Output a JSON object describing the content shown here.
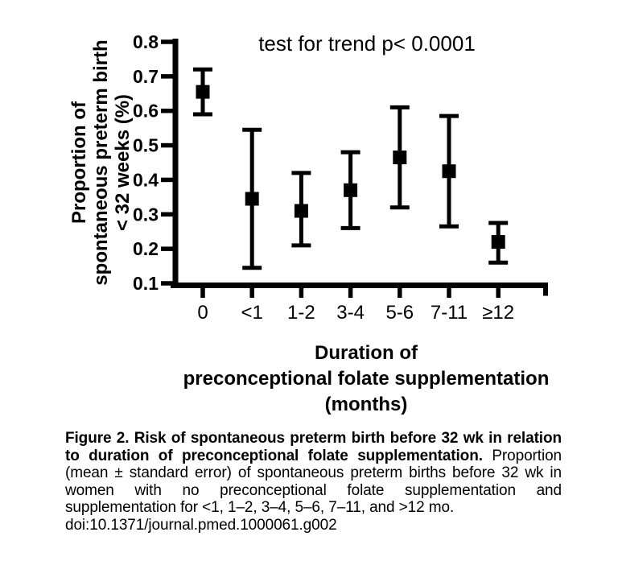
{
  "chart_data": {
    "type": "scatter",
    "annotation": "test for trend p< 0.0001",
    "categories": [
      "0",
      "<1",
      "1-2",
      "3-4",
      "5-6",
      "7-11",
      "≥12"
    ],
    "series": [
      {
        "name": "proportion of spontaneous preterm birth < 32 weeks (mean ± standard error)",
        "means": [
          0.655,
          0.345,
          0.31,
          0.37,
          0.465,
          0.425,
          0.22
        ],
        "err_low": [
          0.59,
          0.145,
          0.21,
          0.26,
          0.32,
          0.265,
          0.16
        ],
        "err_high": [
          0.72,
          0.545,
          0.42,
          0.48,
          0.61,
          0.585,
          0.275
        ]
      }
    ],
    "ylabel": "Proportion of spontaneous preterm birth < 32 weeks (%)",
    "ylabel_lines": [
      "Proportion of",
      "spontaneous preterm birth",
      "< 32 weeks (%)"
    ],
    "xlabel": "Duration of preconceptional folate supplementation (months)",
    "xlabel_lines": [
      "Duration of",
      "preconceptional folate supplementation",
      "(months)"
    ],
    "ylim": [
      0.1,
      0.8
    ],
    "yticks": [
      0.8,
      0.7,
      0.6,
      0.5,
      0.4,
      0.3,
      0.2,
      0.1
    ],
    "grid": false,
    "legend": "none",
    "marker": "filled-square",
    "color": "#000000"
  },
  "caption": {
    "bold_lead": "Figure 2. Risk of spontaneous preterm birth before 32 wk in relation to duration of preconceptional folate supplementation.",
    "body": "Proportion (mean ± standard error) of spontaneous preterm births before 32 wk in women with no preconceptional folate supplementation and supplementation for <1, 1–2, 3–4, 5–6, 7–11, and >12 mo.",
    "doi": "doi:10.1371/journal.pmed.1000061.g002"
  },
  "colors": {
    "foreground": "#000000",
    "background": "#ffffff"
  }
}
